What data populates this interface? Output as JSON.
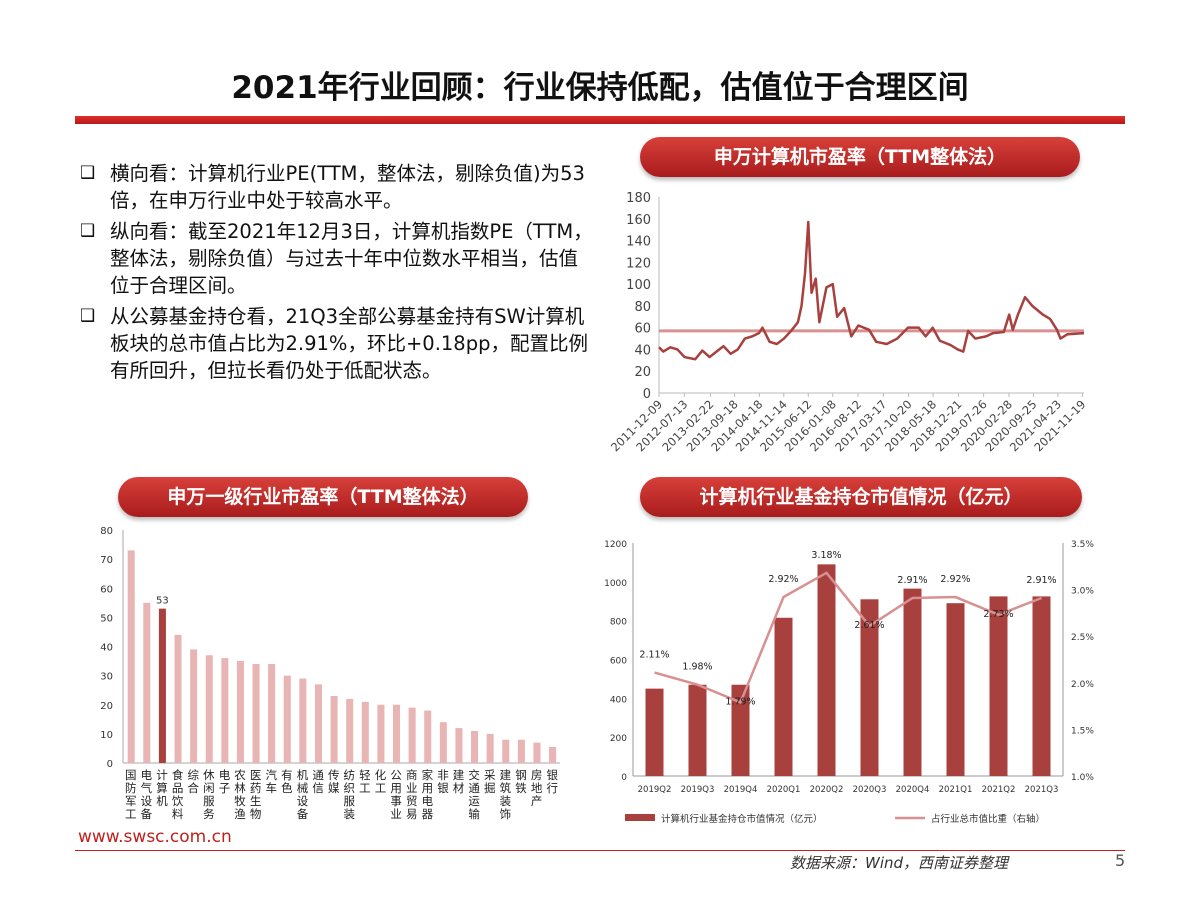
{
  "title": "2021年行业回顾：行业保持低配，估值位于合理区间",
  "bullet_icon": "square-checkbox-icon",
  "bullets": [
    "横向看：计算机行业PE(TTM，整体法，剔除负值)为53倍，在申万行业中处于较高水平。",
    "纵向看：截至2021年12月3日，计算机指数PE（TTM，整体法，剔除负值）与过去十年中位数水平相当，估值位于合理区间。",
    "从公募基金持仓看，21Q3全部公募基金持有SW计算机板块的总市值占比为2.91%，环比+0.18pp，配置比例有所回升，但拉长看仍处于低配状态。"
  ],
  "footer": {
    "url": "www.swsc.com.cn",
    "source": "数据来源：Wind，西南证券整理",
    "page": "5"
  },
  "colors": {
    "accent": "#c0201c",
    "bar_dark": "#a8403e",
    "bar_light": "#e8b4b4",
    "line_light": "#d89090"
  },
  "chart_data": [
    {
      "type": "line",
      "title": "申万计算机市盈率（TTM整体法）",
      "ylim": [
        0,
        180
      ],
      "yticks": [
        0,
        20,
        40,
        60,
        80,
        100,
        120,
        140,
        160,
        180
      ],
      "xticks": [
        "2011-12-09",
        "2012-07-13",
        "2013-02-22",
        "2013-09-18",
        "2014-04-18",
        "2014-11-14",
        "2015-06-12",
        "2016-01-08",
        "2016-08-12",
        "2017-03-17",
        "2017-10-20",
        "2018-05-18",
        "2018-12-21",
        "2019-07-26",
        "2020-02-28",
        "2020-09-25",
        "2021-04-23",
        "2021-11-19"
      ],
      "median": 57,
      "series": [
        {
          "x": [
            "2011-12-09",
            "2012-01-15",
            "2012-03-15",
            "2012-05-15",
            "2012-07-15",
            "2012-10-15",
            "2012-12-15",
            "2013-02-15",
            "2013-04-15",
            "2013-06-15",
            "2013-08-15",
            "2013-10-15",
            "2013-12-15",
            "2014-02-15",
            "2014-04-15",
            "2014-05-15",
            "2014-07-15",
            "2014-09-15",
            "2014-11-15",
            "2015-01-15",
            "2015-03-15",
            "2015-04-15",
            "2015-05-15",
            "2015-06-12",
            "2015-07-10",
            "2015-08-15",
            "2015-09-15",
            "2015-11-15",
            "2016-01-08",
            "2016-02-15",
            "2016-04-15",
            "2016-06-15",
            "2016-08-15",
            "2016-11-15",
            "2017-01-15",
            "2017-04-15",
            "2017-07-15",
            "2017-10-15",
            "2018-01-15",
            "2018-03-15",
            "2018-05-15",
            "2018-07-15",
            "2018-10-15",
            "2018-12-15",
            "2019-02-01",
            "2019-03-15",
            "2019-05-15",
            "2019-08-15",
            "2019-10-15",
            "2020-01-15",
            "2020-03-01",
            "2020-04-01",
            "2020-05-15",
            "2020-07-15",
            "2020-09-15",
            "2020-12-15",
            "2021-02-15",
            "2021-04-15",
            "2021-05-15",
            "2021-07-15",
            "2021-12-03"
          ],
          "y": [
            42,
            38,
            42,
            40,
            33,
            31,
            39,
            33,
            38,
            43,
            36,
            40,
            50,
            52,
            55,
            60,
            47,
            45,
            50,
            57,
            65,
            80,
            110,
            157,
            92,
            105,
            65,
            97,
            100,
            70,
            78,
            52,
            62,
            58,
            47,
            45,
            50,
            60,
            60,
            52,
            60,
            48,
            44,
            40,
            38,
            57,
            50,
            52,
            55,
            56,
            72,
            58,
            72,
            88,
            80,
            72,
            68,
            58,
            50,
            54,
            55
          ]
        }
      ]
    },
    {
      "type": "bar",
      "title": "申万一级行业市盈率（TTM整体法）",
      "ylim": [
        0,
        80
      ],
      "yticks": [
        0,
        10,
        20,
        30,
        40,
        50,
        60,
        70,
        80
      ],
      "categories": [
        "国防军工",
        "电气设备",
        "计算机",
        "食品饮料",
        "综合",
        "休闲服务",
        "电子",
        "农林牧渔",
        "医药生物",
        "汽车",
        "有色",
        "机械设备",
        "通信",
        "传媒",
        "纺织服装",
        "轻工",
        "化工",
        "公用事业",
        "商业贸易",
        "家用电器",
        "非银",
        "建材",
        "交通运输",
        "采掘",
        "建筑装饰",
        "钢铁",
        "房地产",
        "银行"
      ],
      "values": [
        73,
        55,
        53,
        44,
        39,
        37,
        36,
        35,
        34,
        34,
        30,
        29,
        27,
        23,
        22,
        21,
        20,
        20,
        19,
        18,
        14,
        12,
        11,
        10,
        8,
        8,
        7,
        5.5
      ],
      "highlight": "计算机",
      "data_labels": {
        "计算机": "53"
      }
    },
    {
      "type": "bar+line",
      "title": "计算机行业基金持仓市值情况（亿元）",
      "categories": [
        "2019Q2",
        "2019Q3",
        "2019Q4",
        "2020Q1",
        "2020Q2",
        "2020Q3",
        "2020Q4",
        "2021Q1",
        "2021Q2",
        "2021Q3"
      ],
      "ylim": [
        0,
        1200
      ],
      "yticks": [
        0,
        200,
        400,
        600,
        800,
        1000,
        1200
      ],
      "y2lim": [
        1.0,
        3.5
      ],
      "y2ticks": [
        "1.0%",
        "1.5%",
        "2.0%",
        "2.5%",
        "3.0%",
        "3.5%"
      ],
      "series": [
        {
          "name": "计算机行业基金持仓市值情况（亿元）",
          "type": "bar",
          "values": [
            450,
            470,
            470,
            815,
            1090,
            910,
            965,
            890,
            925,
            925
          ]
        },
        {
          "name": "占行业总市值比重（右轴）",
          "type": "line",
          "values": [
            2.11,
            1.98,
            1.79,
            2.92,
            3.18,
            2.61,
            2.91,
            2.92,
            2.73,
            2.91
          ],
          "labels": [
            "2.11%",
            "1.98%",
            "1.79%",
            "2.92%",
            "3.18%",
            "2.61%",
            "2.91%",
            "2.92%",
            "2.73%",
            "2.91%"
          ]
        }
      ],
      "legend": "bottom"
    }
  ]
}
